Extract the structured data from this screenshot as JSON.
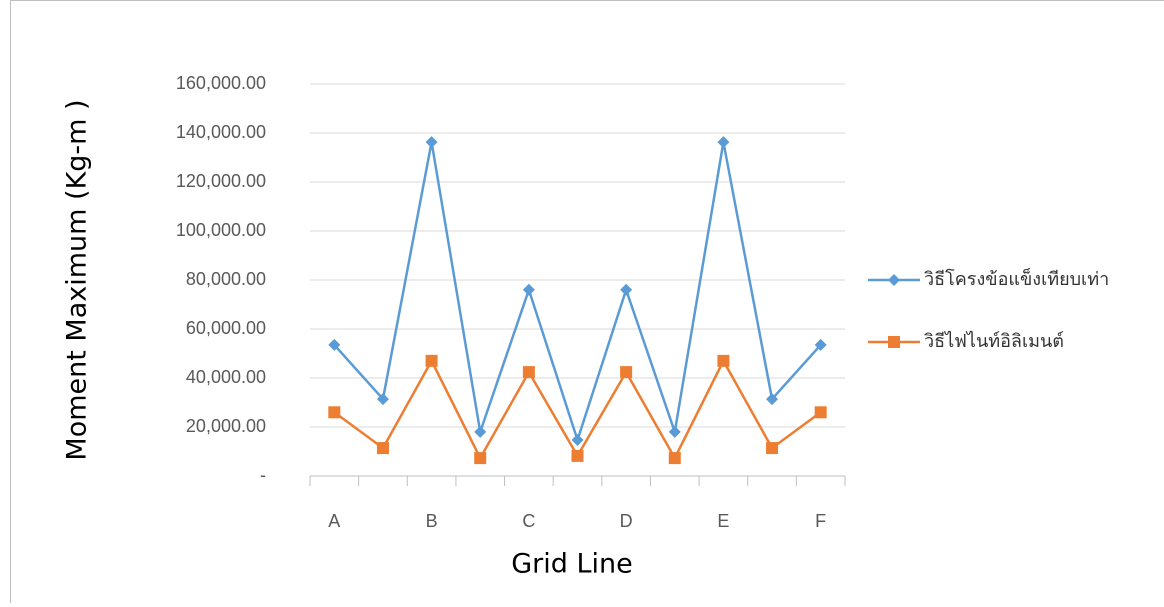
{
  "chart_data": {
    "type": "line",
    "x_label": "Grid Line",
    "y_label": "Moment Maximum (Kg-m )",
    "categories": [
      "A",
      null,
      "B",
      null,
      "C",
      null,
      "D",
      null,
      "E",
      null,
      "F"
    ],
    "series": [
      {
        "name": "วิธีโครงข้อแข็งเทียบเท่า",
        "color": "#5b9bd5",
        "marker": "diamond",
        "values": [
          53500,
          31400,
          136300,
          18000,
          76000,
          14700,
          76000,
          18000,
          136300,
          31400,
          53500
        ]
      },
      {
        "name": "วิธีไฟไนท์อิลิเมนต์",
        "color": "#ed7d31",
        "marker": "square",
        "values": [
          26000,
          11400,
          47000,
          7300,
          42400,
          8200,
          42400,
          7300,
          47000,
          11400,
          26000
        ]
      }
    ],
    "ylim": [
      0,
      160000
    ],
    "yticks": [
      {
        "value": 0,
        "label": "-"
      },
      {
        "value": 20000,
        "label": "20,000.00"
      },
      {
        "value": 40000,
        "label": "40,000.00"
      },
      {
        "value": 60000,
        "label": "60,000.00"
      },
      {
        "value": 80000,
        "label": "80,000.00"
      },
      {
        "value": 100000,
        "label": "100,000.00"
      },
      {
        "value": 120000,
        "label": "120,000.00"
      },
      {
        "value": 140000,
        "label": "140,000.00"
      },
      {
        "value": 160000,
        "label": "160,000.00"
      }
    ],
    "grid": true,
    "legend": "right"
  }
}
